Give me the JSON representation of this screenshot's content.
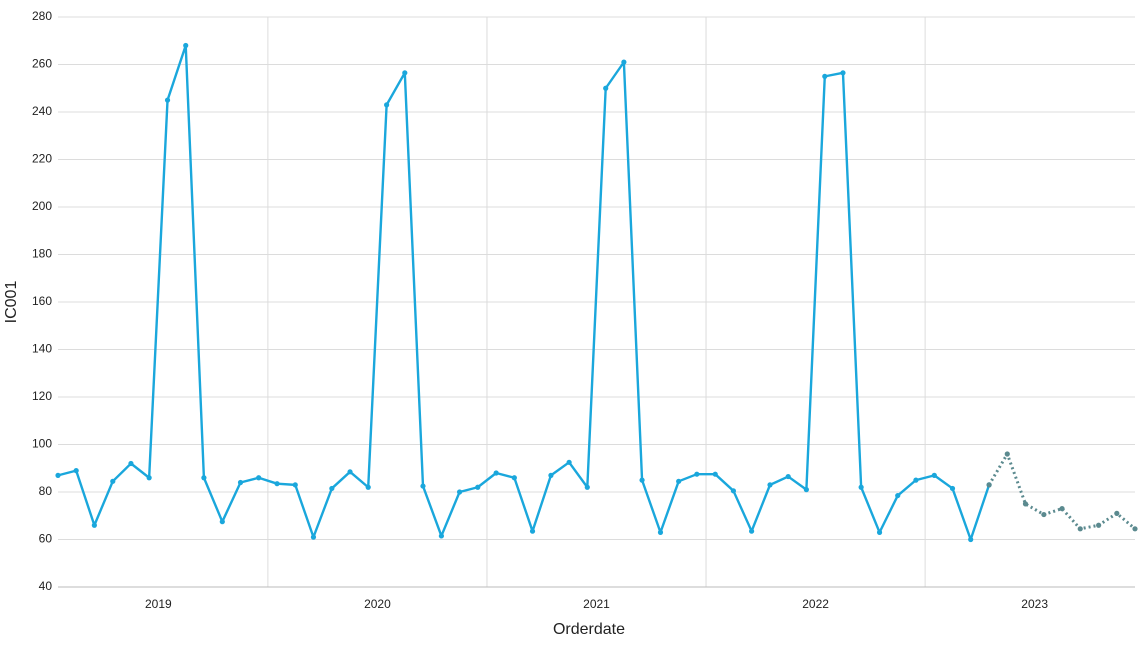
{
  "chart_data": {
    "type": "line",
    "x_label": "Orderdate",
    "y_label": "IC001",
    "x": [
      2019.042,
      2019.125,
      2019.208,
      2019.292,
      2019.375,
      2019.458,
      2019.542,
      2019.625,
      2019.708,
      2019.792,
      2019.875,
      2019.958,
      2020.042,
      2020.125,
      2020.208,
      2020.292,
      2020.375,
      2020.458,
      2020.542,
      2020.625,
      2020.708,
      2020.792,
      2020.875,
      2020.958,
      2021.042,
      2021.125,
      2021.208,
      2021.292,
      2021.375,
      2021.458,
      2021.542,
      2021.625,
      2021.708,
      2021.792,
      2021.875,
      2021.958,
      2022.042,
      2022.125,
      2022.208,
      2022.292,
      2022.375,
      2022.458,
      2022.542,
      2022.625,
      2022.708,
      2022.792,
      2022.875,
      2022.958,
      2023.042,
      2023.125,
      2023.208,
      2023.292,
      2023.375,
      2023.458,
      2023.542,
      2023.625,
      2023.708,
      2023.792,
      2023.875,
      2023.958
    ],
    "series": [
      {
        "color": "#1aa7dc",
        "dash": false,
        "values": [
          87,
          89,
          66,
          84.5,
          92,
          86,
          245,
          268,
          86,
          67.5,
          84,
          86,
          83.5,
          83,
          61,
          81.5,
          88.5,
          82,
          243,
          256.5,
          82.5,
          61.5,
          80,
          82,
          88,
          86,
          63.5,
          87,
          92.5,
          82,
          250,
          261,
          85,
          63,
          84.5,
          87.5,
          87.5,
          80.5,
          63.5,
          83,
          86.5,
          81,
          255,
          256.5,
          82,
          63,
          78.5,
          85,
          87,
          81.5,
          60,
          83,
          null,
          null,
          null,
          null,
          null,
          null,
          null,
          null
        ]
      },
      {
        "color": "#5b8a8f",
        "dash": true,
        "values": [
          null,
          null,
          null,
          null,
          null,
          null,
          null,
          null,
          null,
          null,
          null,
          null,
          null,
          null,
          null,
          null,
          null,
          null,
          null,
          null,
          null,
          null,
          null,
          null,
          null,
          null,
          null,
          null,
          null,
          null,
          null,
          null,
          null,
          null,
          null,
          null,
          null,
          null,
          null,
          null,
          null,
          null,
          null,
          null,
          null,
          null,
          null,
          null,
          null,
          null,
          null,
          83,
          96,
          75,
          70.5,
          73,
          64.5,
          66,
          71,
          64.5
        ]
      }
    ],
    "xlim": [
      2019.042,
      2023.958
    ],
    "xticks": [
      {
        "value": 2019.5,
        "label": "2019"
      },
      {
        "value": 2020.5,
        "label": "2020"
      },
      {
        "value": 2021.5,
        "label": "2021"
      },
      {
        "value": 2022.5,
        "label": "2022"
      },
      {
        "value": 2023.5,
        "label": "2023"
      }
    ],
    "xgrid": [
      2020,
      2021,
      2022,
      2023
    ],
    "ylim": [
      40,
      280
    ],
    "yticks": [
      40,
      60,
      80,
      100,
      120,
      140,
      160,
      180,
      200,
      220,
      240,
      260,
      280
    ],
    "grid": true
  }
}
